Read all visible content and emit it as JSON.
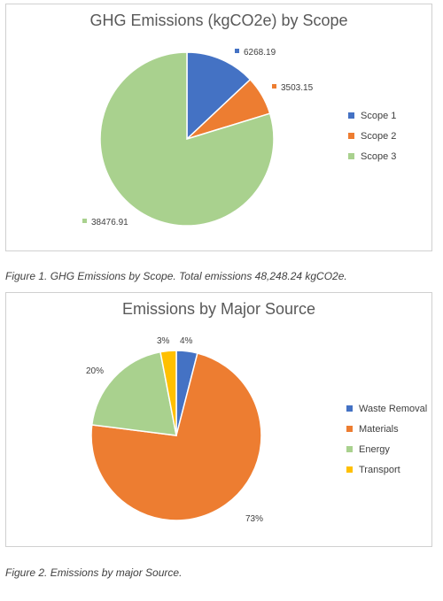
{
  "chart_data": [
    {
      "type": "pie",
      "title": "GHG Emissions (kgCO2e) by Scope",
      "categories": [
        "Scope 1",
        "Scope 2",
        "Scope 3"
      ],
      "values": [
        6268.19,
        3503.15,
        38476.91
      ],
      "data_labels": [
        "6268.19",
        "3503.15",
        "38476.91"
      ],
      "colors": [
        "#4472C4",
        "#ED7D31",
        "#A9D18E"
      ],
      "legend_position": "right"
    },
    {
      "type": "pie",
      "title": "Emissions by Major Source",
      "categories": [
        "Waste Removal",
        "Materials",
        "Energy",
        "Transport"
      ],
      "values": [
        4,
        73,
        20,
        3
      ],
      "data_labels": [
        "4%",
        "73%",
        "20%",
        "3%"
      ],
      "colors": [
        "#4472C4",
        "#ED7D31",
        "#A9D18E",
        "#FFC000"
      ],
      "legend_position": "right"
    }
  ],
  "captions": {
    "figure1": "Figure 1. GHG Emissions by Scope. Total emissions 48,248.24 kgCO2e.",
    "figure2": "Figure 2. Emissions by major Source."
  }
}
